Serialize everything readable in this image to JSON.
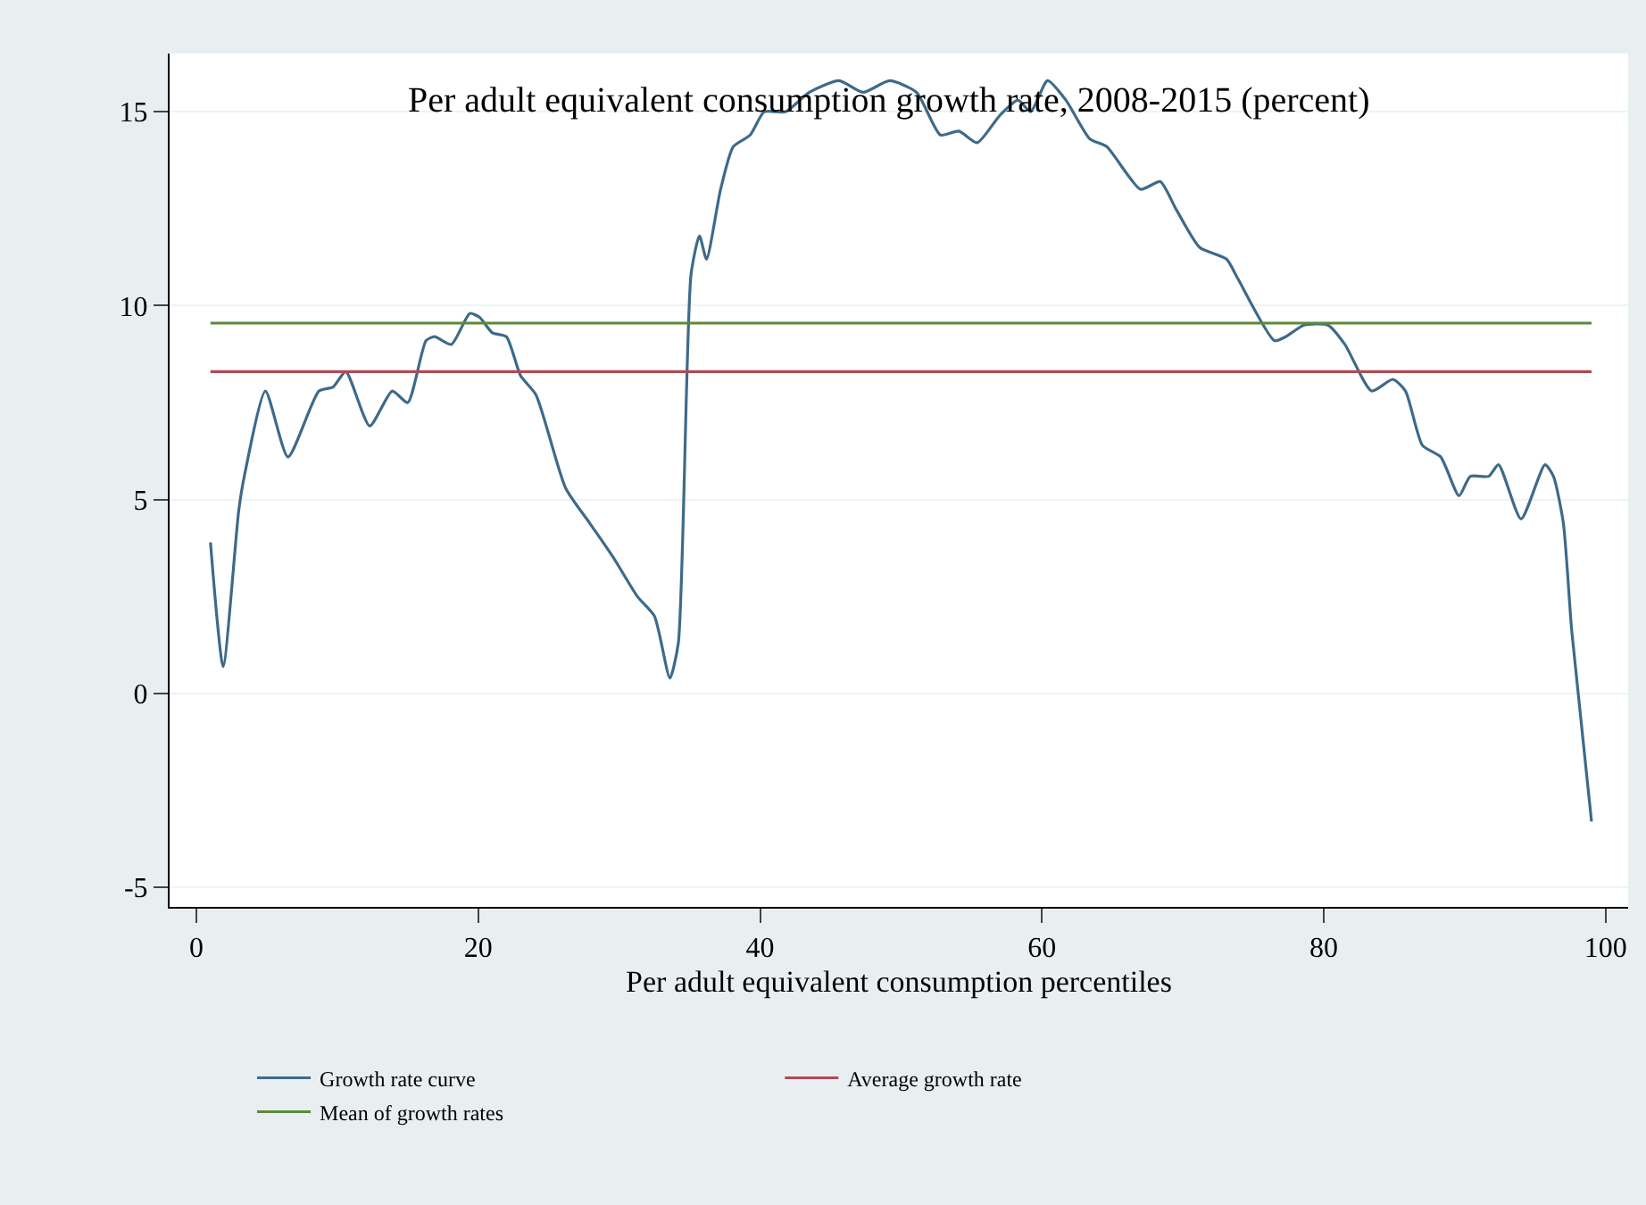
{
  "chart_data": {
    "type": "line",
    "title": "Per adult equivalent consumption growth rate, 2008-2015 (percent)",
    "xlabel": "Per adult equivalent consumption percentiles",
    "xlim": [
      -1.9,
      101.6
    ],
    "xticks": [
      0,
      20,
      40,
      60,
      80,
      100
    ],
    "ylim": [
      -5.5,
      16.5
    ],
    "yticks": [
      -5,
      0,
      5,
      10,
      15
    ],
    "grid": "y",
    "legend": "bottom",
    "line_style": "solid",
    "series": [
      {
        "name": "Growth rate curve",
        "color": "#3e6a8a",
        "x": [
          1,
          1.9,
          3,
          3.4,
          4.9,
          6.5,
          8.7,
          9.7,
          10.6,
          12.3,
          13.9,
          15,
          16.3,
          16.9,
          18.1,
          19.4,
          20.1,
          21,
          22,
          23,
          24.1,
          26.2,
          27.9,
          29.6,
          31.3,
          32.5,
          33.6,
          34.2,
          35.1,
          35.7,
          36.2,
          37.2,
          38.1,
          39.3,
          40.3,
          41.8,
          43.5,
          45.6,
          47.3,
          49.2,
          51.1,
          52.8,
          54.1,
          55.4,
          57,
          58.3,
          59.2,
          60.4,
          61.7,
          63.4,
          64.6,
          67,
          68.4,
          69.5,
          71.2,
          73.1,
          73.9,
          76.5,
          77.3,
          78.6,
          80.3,
          81.5,
          83.4,
          84.9,
          85.8,
          87,
          88.3,
          89.6,
          90.4,
          91.7,
          92.4,
          94,
          95.7,
          96.3,
          97,
          97.6,
          99
        ],
        "values": [
          3.9,
          0.7,
          4.7,
          5.6,
          7.8,
          6.1,
          7.8,
          7.9,
          8.3,
          6.9,
          7.8,
          7.5,
          9.1,
          9.2,
          9,
          9.8,
          9.7,
          9.3,
          9.2,
          8.2,
          7.7,
          5.3,
          4.4,
          3.5,
          2.5,
          2,
          0.4,
          1.3,
          10.8,
          11.8,
          11.2,
          13,
          14.1,
          14.4,
          15,
          15,
          15.5,
          15.8,
          15.5,
          15.8,
          15.5,
          14.4,
          14.5,
          14.2,
          14.9,
          15.3,
          15,
          15.8,
          15.3,
          14.3,
          14.1,
          13,
          13.2,
          12.5,
          11.5,
          11.2,
          10.7,
          9.1,
          9.2,
          9.5,
          9.5,
          9,
          7.8,
          8.1,
          7.8,
          6.4,
          6.1,
          5.1,
          5.6,
          5.6,
          5.9,
          4.5,
          5.9,
          5.6,
          4.4,
          1.6,
          -3.3
        ]
      },
      {
        "name": "Average growth rate",
        "color": "#b04a55",
        "x": [
          1,
          99
        ],
        "values": [
          8.3,
          8.3
        ]
      },
      {
        "name": "Mean of growth rates",
        "color": "#5a8a3a",
        "x": [
          1,
          99
        ],
        "values": [
          9.55,
          9.55
        ]
      }
    ]
  }
}
